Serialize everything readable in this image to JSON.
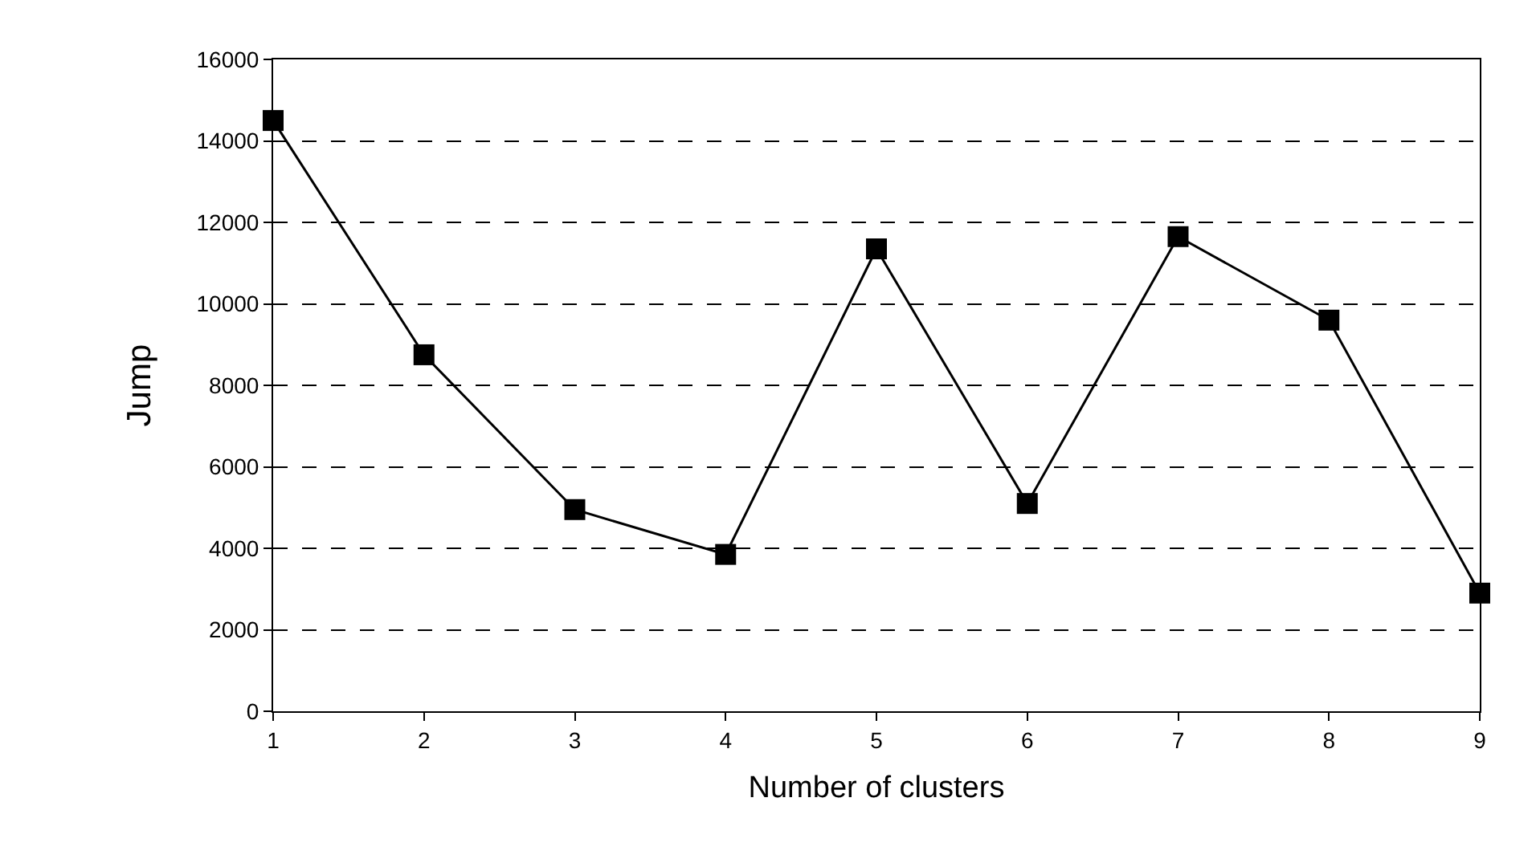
{
  "chart_data": {
    "type": "line",
    "xlabel": "Number of clusters",
    "ylabel": "Jump",
    "x": [
      1,
      2,
      3,
      4,
      5,
      6,
      7,
      8,
      9
    ],
    "series": [
      {
        "color": "#000000",
        "values": [
          14500,
          8750,
          4950,
          3850,
          11350,
          5100,
          11650,
          9600,
          2900
        ]
      }
    ],
    "xlim": [
      1,
      9
    ],
    "xticks": [
      1,
      2,
      3,
      4,
      5,
      6,
      7,
      8,
      9
    ],
    "ylim": [
      0,
      16000
    ],
    "yticks": [
      0,
      2000,
      4000,
      6000,
      8000,
      10000,
      12000,
      14000,
      16000
    ],
    "grid": "y",
    "marker": "square",
    "line_style": "solid"
  }
}
